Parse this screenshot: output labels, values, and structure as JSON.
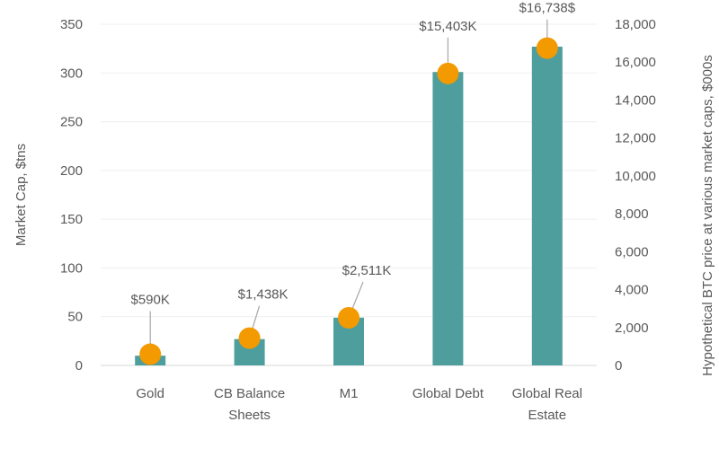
{
  "chart_data": {
    "type": "bar",
    "categories": [
      "Gold",
      "CB Balance Sheets",
      "M1",
      "Global Debt",
      "Global Real Estate"
    ],
    "series": [
      {
        "type": "bar",
        "axis": "left",
        "values": [
          10,
          27,
          49,
          301,
          327
        ],
        "color": "#4E9E9E"
      },
      {
        "type": "scatter",
        "axis": "right",
        "values": [
          590,
          1438,
          2511,
          15403,
          16738
        ],
        "color": "#F29A00",
        "data_labels": [
          "$590K",
          "$1,438K",
          "$2,511K",
          "$15,403K",
          "$16,738$"
        ]
      }
    ],
    "ylabel": "Market Cap, $tns",
    "ylim": [
      0,
      350
    ],
    "yticks": [
      "0",
      "50",
      "100",
      "150",
      "200",
      "250",
      "300",
      "350"
    ],
    "y2label": "Hypothetical BTC price at various market caps, $000s",
    "y2lim": [
      0,
      18000
    ],
    "y2ticks": [
      "0",
      "2,000",
      "4,000",
      "6,000",
      "8,000",
      "10,000",
      "12,000",
      "14,000",
      "16,000",
      "18,000"
    ],
    "grid": true
  }
}
